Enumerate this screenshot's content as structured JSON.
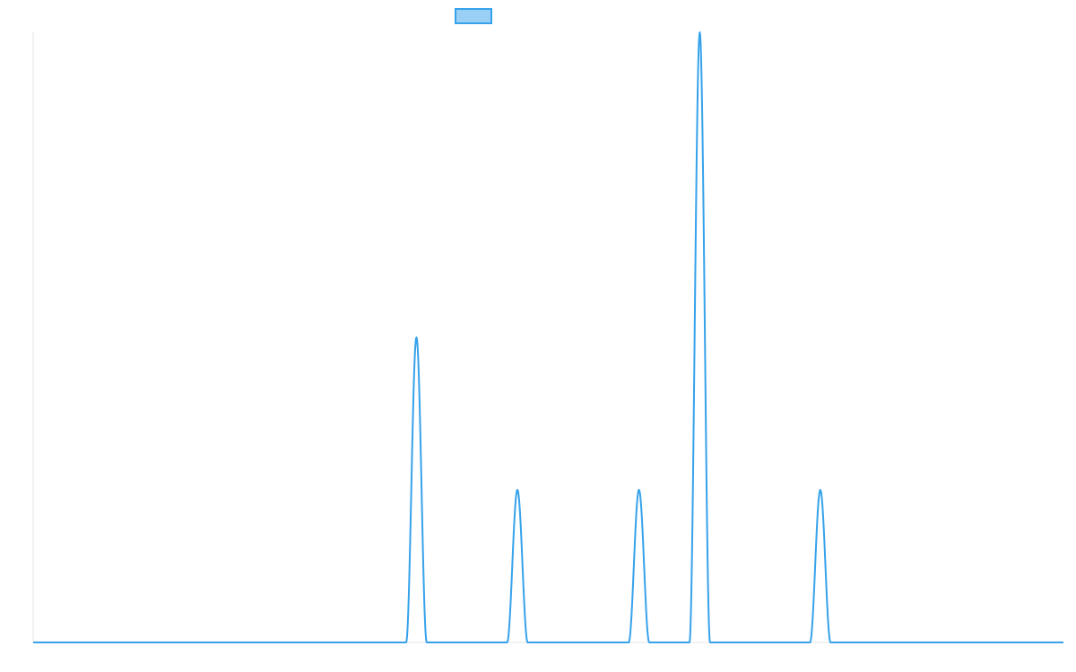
{
  "chart_data": {
    "type": "line",
    "title": "",
    "xlabel": "",
    "ylabel": "",
    "grid": false,
    "legend": "top-center",
    "colors": {
      "line": "#36A2EB",
      "legend_fill": "#9AD0F5",
      "axis": "#E5E5E5"
    },
    "xlim": [
      0,
      100
    ],
    "ylim": [
      0,
      4
    ],
    "series": [
      {
        "peaks": [
          {
            "x": 37.2,
            "height": 2.0,
            "width": 2.0
          },
          {
            "x": 47.0,
            "height": 1.0,
            "width": 2.0
          },
          {
            "x": 58.8,
            "height": 1.0,
            "width": 2.0
          },
          {
            "x": 64.7,
            "height": 4.0,
            "width": 2.0
          },
          {
            "x": 76.4,
            "height": 1.0,
            "width": 2.0
          }
        ]
      }
    ]
  }
}
